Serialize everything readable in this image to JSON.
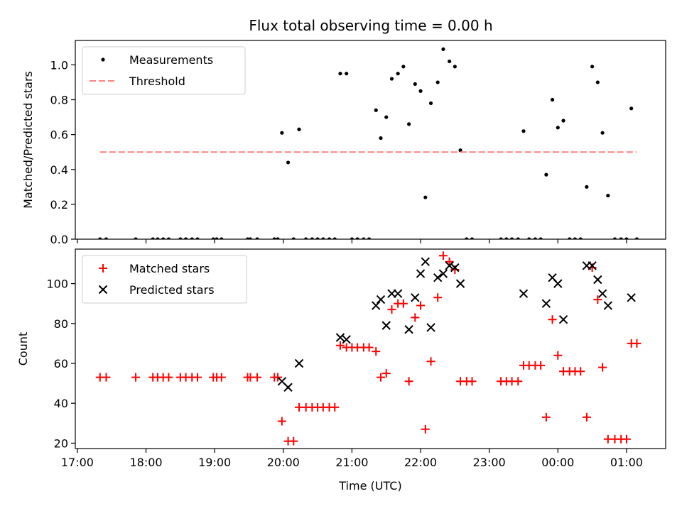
{
  "chart_data": [
    {
      "type": "scatter",
      "title": "Flux total observing time = 0.00 h",
      "xlabel": "",
      "ylabel": "Matched/Predicted stars",
      "xlim": [
        16.97,
        25.57
      ],
      "ylim": [
        0.0,
        1.14
      ],
      "yticks": [
        0.0,
        0.2,
        0.4,
        0.6,
        0.8,
        1.0
      ],
      "ytick_labels": [
        "0.0",
        "0.2",
        "0.4",
        "0.6",
        "0.8",
        "1.0"
      ],
      "legend_position": "top-left",
      "series": [
        {
          "name": "Measurements",
          "marker": "dot",
          "color": "#000000",
          "points": [
            [
              17.33,
              0
            ],
            [
              17.42,
              0
            ],
            [
              17.85,
              0
            ],
            [
              18.1,
              0
            ],
            [
              18.17,
              0
            ],
            [
              18.25,
              0
            ],
            [
              18.33,
              0
            ],
            [
              18.5,
              0
            ],
            [
              18.58,
              0
            ],
            [
              18.67,
              0
            ],
            [
              18.75,
              0
            ],
            [
              18.98,
              0
            ],
            [
              19.03,
              0
            ],
            [
              19.1,
              0
            ],
            [
              19.48,
              0
            ],
            [
              19.52,
              0
            ],
            [
              19.62,
              0
            ],
            [
              19.87,
              0
            ],
            [
              19.92,
              0
            ],
            [
              19.98,
              0.61
            ],
            [
              20.07,
              0.44
            ],
            [
              20.15,
              0
            ],
            [
              20.23,
              0.63
            ],
            [
              20.33,
              0
            ],
            [
              20.42,
              0
            ],
            [
              20.5,
              0
            ],
            [
              20.58,
              0
            ],
            [
              20.67,
              0
            ],
            [
              20.75,
              0
            ],
            [
              20.83,
              0.95
            ],
            [
              20.92,
              0.95
            ],
            [
              21.0,
              0
            ],
            [
              21.08,
              0
            ],
            [
              21.17,
              0
            ],
            [
              21.25,
              0
            ],
            [
              21.35,
              0.74
            ],
            [
              21.42,
              0.58
            ],
            [
              21.5,
              0.7
            ],
            [
              21.58,
              0.92
            ],
            [
              21.67,
              0.95
            ],
            [
              21.75,
              0.99
            ],
            [
              21.83,
              0.66
            ],
            [
              21.92,
              0.89
            ],
            [
              22.0,
              0.85
            ],
            [
              22.07,
              0.24
            ],
            [
              22.15,
              0.78
            ],
            [
              22.25,
              0.9
            ],
            [
              22.33,
              1.09
            ],
            [
              22.42,
              1.02
            ],
            [
              22.5,
              0.99
            ],
            [
              22.58,
              0.51
            ],
            [
              22.67,
              0
            ],
            [
              22.75,
              0
            ],
            [
              23.17,
              0
            ],
            [
              23.25,
              0
            ],
            [
              23.33,
              0
            ],
            [
              23.42,
              0
            ],
            [
              23.5,
              0.62
            ],
            [
              23.58,
              0
            ],
            [
              23.67,
              0
            ],
            [
              23.75,
              0
            ],
            [
              23.83,
              0.37
            ],
            [
              23.92,
              0.8
            ],
            [
              24.0,
              0.64
            ],
            [
              24.08,
              0.68
            ],
            [
              24.17,
              0
            ],
            [
              24.25,
              0
            ],
            [
              24.33,
              0
            ],
            [
              24.42,
              0.3
            ],
            [
              24.5,
              0.99
            ],
            [
              24.58,
              0.9
            ],
            [
              24.65,
              0.61
            ],
            [
              24.73,
              0.25
            ],
            [
              24.83,
              0
            ],
            [
              24.92,
              0
            ],
            [
              25.0,
              0
            ],
            [
              25.07,
              0.75
            ],
            [
              25.15,
              0
            ]
          ]
        },
        {
          "name": "Threshold",
          "style": "dashed",
          "color": "#ff7f7f",
          "points": [
            [
              17.33,
              0.5
            ],
            [
              25.15,
              0.5
            ]
          ]
        }
      ]
    },
    {
      "type": "scatter",
      "title": "",
      "xlabel": "Time (UTC)",
      "ylabel": "Count",
      "xlim": [
        16.97,
        25.57
      ],
      "ylim": [
        17.3,
        117.3
      ],
      "yticks": [
        20,
        40,
        60,
        80,
        100
      ],
      "ytick_labels": [
        "20",
        "40",
        "60",
        "80",
        "100"
      ],
      "xticks": [
        17,
        18,
        19,
        20,
        21,
        22,
        23,
        24,
        25
      ],
      "xtick_labels": [
        "17:00",
        "18:00",
        "19:00",
        "20:00",
        "21:00",
        "22:00",
        "23:00",
        "00:00",
        "01:00"
      ],
      "legend_position": "top-left",
      "series": [
        {
          "name": "Matched stars",
          "marker": "plus",
          "color": "#ff0000",
          "points": [
            [
              17.33,
              53
            ],
            [
              17.42,
              53
            ],
            [
              17.85,
              53
            ],
            [
              18.1,
              53
            ],
            [
              18.17,
              53
            ],
            [
              18.25,
              53
            ],
            [
              18.33,
              53
            ],
            [
              18.5,
              53
            ],
            [
              18.58,
              53
            ],
            [
              18.67,
              53
            ],
            [
              18.75,
              53
            ],
            [
              18.98,
              53
            ],
            [
              19.03,
              53
            ],
            [
              19.1,
              53
            ],
            [
              19.48,
              53
            ],
            [
              19.52,
              53
            ],
            [
              19.62,
              53
            ],
            [
              19.87,
              53
            ],
            [
              19.92,
              53
            ],
            [
              19.98,
              31
            ],
            [
              20.07,
              21
            ],
            [
              20.15,
              21
            ],
            [
              20.23,
              38
            ],
            [
              20.33,
              38
            ],
            [
              20.42,
              38
            ],
            [
              20.5,
              38
            ],
            [
              20.58,
              38
            ],
            [
              20.67,
              38
            ],
            [
              20.75,
              38
            ],
            [
              20.83,
              69
            ],
            [
              20.92,
              68
            ],
            [
              21.0,
              68
            ],
            [
              21.08,
              68
            ],
            [
              21.17,
              68
            ],
            [
              21.25,
              68
            ],
            [
              21.35,
              66
            ],
            [
              21.42,
              53
            ],
            [
              21.5,
              55
            ],
            [
              21.58,
              87
            ],
            [
              21.67,
              90
            ],
            [
              21.75,
              90
            ],
            [
              21.83,
              51
            ],
            [
              21.92,
              83
            ],
            [
              22.0,
              89
            ],
            [
              22.07,
              27
            ],
            [
              22.15,
              61
            ],
            [
              22.25,
              93
            ],
            [
              22.33,
              114
            ],
            [
              22.42,
              111
            ],
            [
              22.5,
              107
            ],
            [
              22.58,
              51
            ],
            [
              22.67,
              51
            ],
            [
              22.75,
              51
            ],
            [
              23.17,
              51
            ],
            [
              23.25,
              51
            ],
            [
              23.33,
              51
            ],
            [
              23.42,
              51
            ],
            [
              23.5,
              59
            ],
            [
              23.58,
              59
            ],
            [
              23.67,
              59
            ],
            [
              23.75,
              59
            ],
            [
              23.83,
              33
            ],
            [
              23.92,
              82
            ],
            [
              24.0,
              64
            ],
            [
              24.08,
              56
            ],
            [
              24.17,
              56
            ],
            [
              24.25,
              56
            ],
            [
              24.33,
              56
            ],
            [
              24.42,
              33
            ],
            [
              24.5,
              108
            ],
            [
              24.58,
              92
            ],
            [
              24.65,
              58
            ],
            [
              24.73,
              22
            ],
            [
              24.83,
              22
            ],
            [
              24.92,
              22
            ],
            [
              25.0,
              22
            ],
            [
              25.07,
              70
            ],
            [
              25.15,
              70
            ]
          ]
        },
        {
          "name": "Predicted stars",
          "marker": "cross",
          "color": "#000000",
          "points": [
            [
              19.98,
              51
            ],
            [
              20.07,
              48
            ],
            [
              20.23,
              60
            ],
            [
              20.83,
              73
            ],
            [
              20.92,
              72
            ],
            [
              21.35,
              89
            ],
            [
              21.42,
              92
            ],
            [
              21.5,
              79
            ],
            [
              21.58,
              95
            ],
            [
              21.67,
              95
            ],
            [
              21.83,
              77
            ],
            [
              21.92,
              93
            ],
            [
              22.0,
              105
            ],
            [
              22.07,
              111
            ],
            [
              22.15,
              78
            ],
            [
              22.25,
              103
            ],
            [
              22.33,
              105
            ],
            [
              22.42,
              109
            ],
            [
              22.5,
              108
            ],
            [
              22.58,
              100
            ],
            [
              23.5,
              95
            ],
            [
              23.83,
              90
            ],
            [
              23.92,
              103
            ],
            [
              24.0,
              100
            ],
            [
              24.08,
              82
            ],
            [
              24.42,
              109
            ],
            [
              24.5,
              109
            ],
            [
              24.58,
              102
            ],
            [
              24.65,
              95
            ],
            [
              24.73,
              89
            ],
            [
              25.07,
              93
            ]
          ]
        }
      ]
    }
  ]
}
